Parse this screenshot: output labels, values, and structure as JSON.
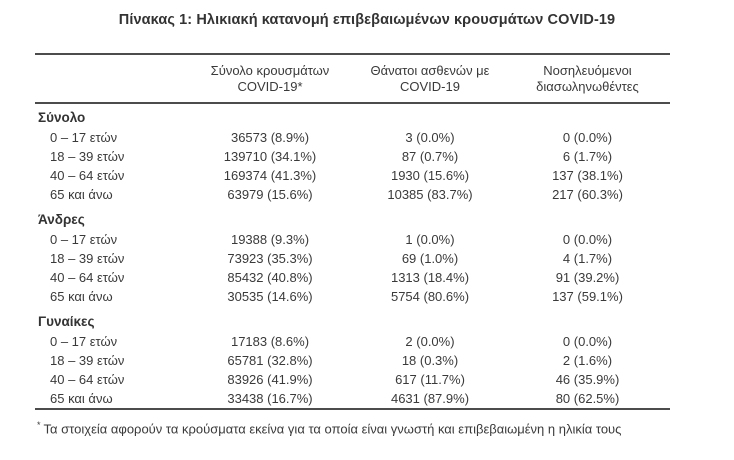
{
  "title": "Πίνακας 1: Ηλικιακή κατανομή επιβεβαιωμένων κρουσμάτων COVID-19",
  "table": {
    "header": {
      "cases": [
        "Σύνολο κρουσμάτων",
        "COVID-19*"
      ],
      "deaths": [
        "Θάνατοι ασθενών με",
        "COVID-19"
      ],
      "intubated": [
        "Νοσηλευόμενοι",
        "διασωληνωθέντες"
      ]
    },
    "sections": [
      {
        "name": "Σύνολο",
        "rows": [
          {
            "label": "0 – 17 ετών",
            "cases": "36573 (8.9%)",
            "deaths": "3 (0.0%)",
            "intubated": "0 (0.0%)"
          },
          {
            "label": "18 – 39 ετών",
            "cases": "139710 (34.1%)",
            "deaths": "87 (0.7%)",
            "intubated": "6 (1.7%)"
          },
          {
            "label": "40 – 64 ετών",
            "cases": "169374 (41.3%)",
            "deaths": "1930 (15.6%)",
            "intubated": "137 (38.1%)"
          },
          {
            "label": "65 και άνω",
            "cases": "63979 (15.6%)",
            "deaths": "10385 (83.7%)",
            "intubated": "217 (60.3%)"
          }
        ]
      },
      {
        "name": "Άνδρες",
        "rows": [
          {
            "label": "0 – 17 ετών",
            "cases": "19388 (9.3%)",
            "deaths": "1 (0.0%)",
            "intubated": "0 (0.0%)"
          },
          {
            "label": "18 – 39 ετών",
            "cases": "73923 (35.3%)",
            "deaths": "69 (1.0%)",
            "intubated": "4 (1.7%)"
          },
          {
            "label": "40 – 64 ετών",
            "cases": "85432 (40.8%)",
            "deaths": "1313 (18.4%)",
            "intubated": "91 (39.2%)"
          },
          {
            "label": "65 και άνω",
            "cases": "30535 (14.6%)",
            "deaths": "5754 (80.6%)",
            "intubated": "137 (59.1%)"
          }
        ]
      },
      {
        "name": "Γυναίκες",
        "rows": [
          {
            "label": "0 – 17 ετών",
            "cases": "17183 (8.6%)",
            "deaths": "2 (0.0%)",
            "intubated": "0 (0.0%)"
          },
          {
            "label": "18 – 39 ετών",
            "cases": "65781 (32.8%)",
            "deaths": "18 (0.3%)",
            "intubated": "2 (1.6%)"
          },
          {
            "label": "40 – 64 ετών",
            "cases": "83926 (41.9%)",
            "deaths": "617 (11.7%)",
            "intubated": "46 (35.9%)"
          },
          {
            "label": "65 και άνω",
            "cases": "33438 (16.7%)",
            "deaths": "4631 (87.9%)",
            "intubated": "80 (62.5%)"
          }
        ]
      }
    ]
  },
  "footnote": {
    "marker": "*",
    "text": "Τα στοιχεία αφορούν τα κρούσματα εκείνα για τα οποία είναι γνωστή και επιβεβαιωμένη η ηλικία τους"
  },
  "colors": {
    "text": "#3a3a3a",
    "rule": "#4c4c4c",
    "background": "#ffffff"
  }
}
